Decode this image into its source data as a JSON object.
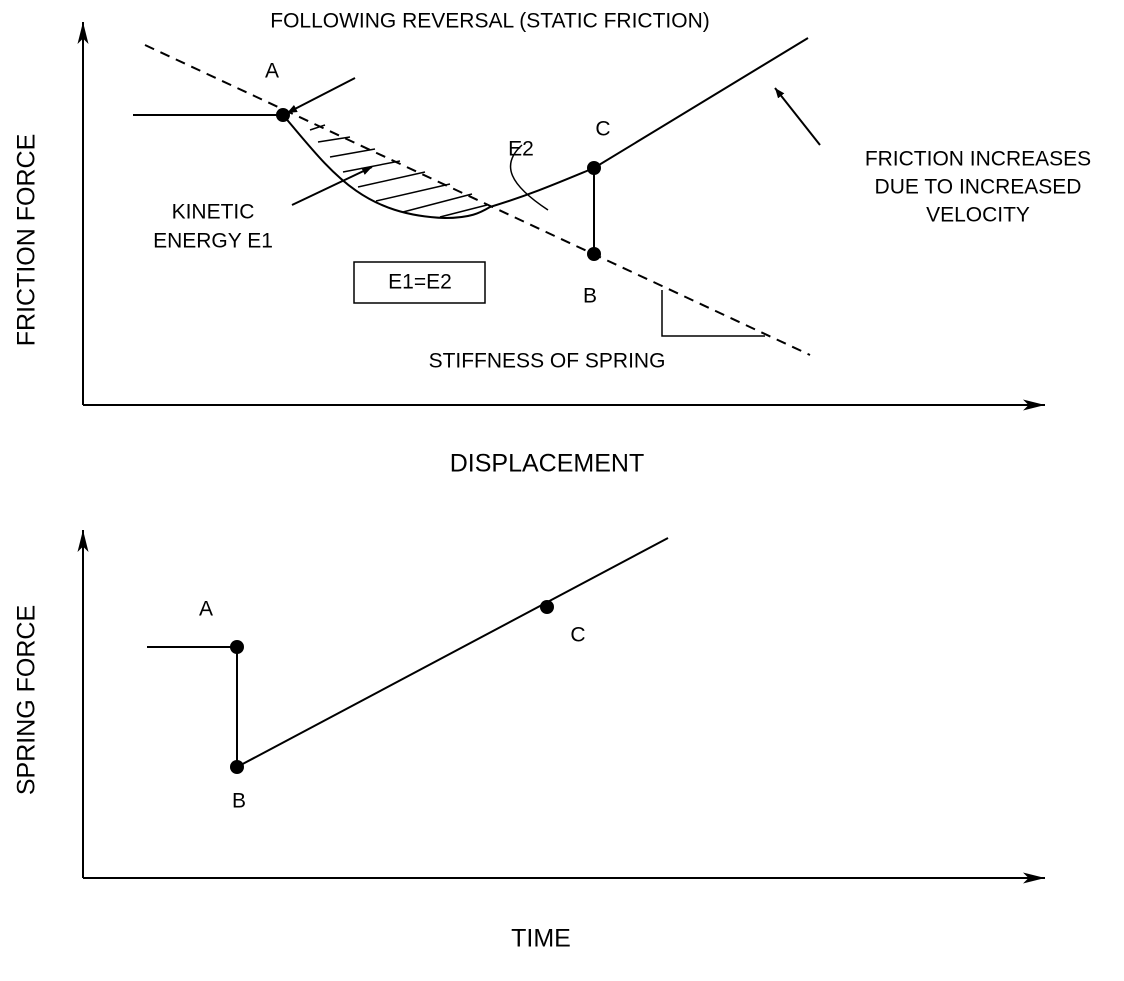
{
  "top": {
    "title_note": "FOLLOWING REVERSAL (STATIC FRICTION)",
    "y_label": "FRICTION FORCE",
    "x_label": "DISPLACEMENT",
    "point_a": "A",
    "point_b": "B",
    "point_c": "C",
    "e2": "E2",
    "box": "E1=E2",
    "kinetic": [
      "KINETIC",
      "ENERGY E1"
    ],
    "friction_note": [
      "FRICTION INCREASES",
      "DUE TO INCREASED",
      "VELOCITY"
    ],
    "stiffness": "STIFFNESS OF SPRING"
  },
  "bottom": {
    "y_label": "SPRING FORCE",
    "x_label": "TIME",
    "point_a": "A",
    "point_b": "B",
    "point_c": "C"
  }
}
